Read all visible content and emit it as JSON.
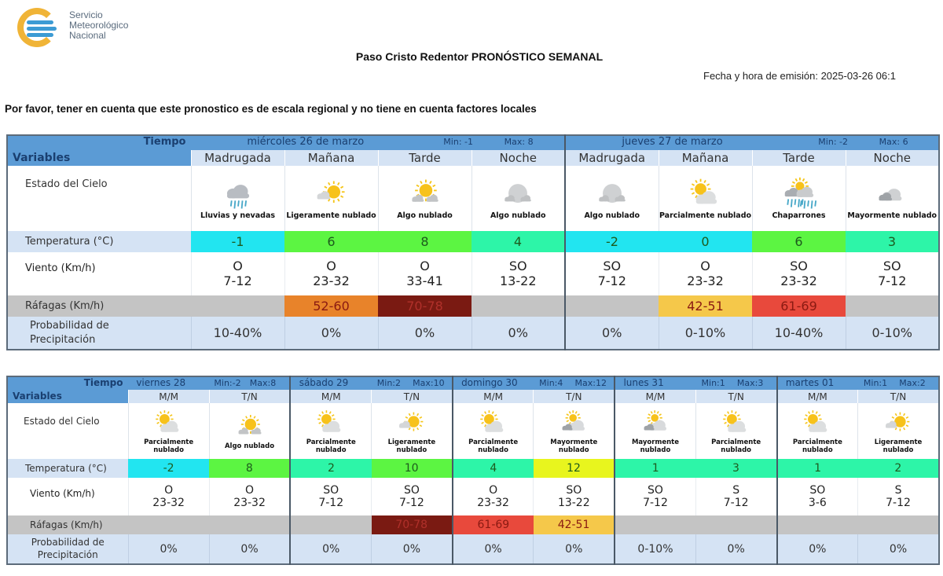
{
  "header": {
    "logo": {
      "line1": "Servicio",
      "line2": "Meteorológico",
      "line3": "Nacional"
    },
    "title": "Paso Cristo Redentor PRONÓSTICO SEMANAL",
    "emission": "Fecha y hora de emisión: 2025-03-26 06:1",
    "notice": "Por favor, tener en cuenta que este pronostico es de escala regional y no tiene en cuenta factores locales"
  },
  "labels": {
    "tiempo": "Tiempo",
    "variables": "Variables",
    "sky": "Estado del Cielo",
    "temp": "Temperatura (°C)",
    "wind": "Viento (Km/h)",
    "gust": "Ráfagas (Km/h)",
    "prob_line1": "Probabilidad de",
    "prob_line2": "Precipitación"
  },
  "colors": {
    "header_blue": "#5b9bd5",
    "subheader": "#d5e3f4",
    "temp_cyan": "#22e5f0",
    "temp_green": "#5cf542",
    "temp_teal": "#2df5a8",
    "temp_yellow": "#e8f51e",
    "gust_none": "#c4c4c4",
    "gust_yellow": "#f5c84a",
    "gust_orange": "#e8832a",
    "gust_red": "#e8493c",
    "gust_darkred": "#7a1a12"
  },
  "table1": {
    "days": [
      {
        "name": "miércoles 26 de marzo",
        "min": "Min:  -1",
        "max": "Max:  8"
      },
      {
        "name": "jueves 27 de marzo",
        "min": "Min:  -2",
        "max": "Max:  6"
      }
    ],
    "periods": [
      {
        "label": "Madrugada",
        "icon": "rain-snow-icon",
        "sky": "Lluvias y nevadas",
        "temp": "-1",
        "temp_color": "#22e5f0",
        "wind_dir": "O",
        "wind_speed": "7-12",
        "gust": "",
        "gust_color": "#c4c4c4",
        "gust_text": "#8a1a12",
        "prob": "10-40%"
      },
      {
        "label": "Mañana",
        "icon": "mostly-sunny-icon",
        "sky": "Ligeramente nublado",
        "temp": "6",
        "temp_color": "#5cf542",
        "wind_dir": "O",
        "wind_speed": "23-32",
        "gust": "52-60",
        "gust_color": "#e8832a",
        "gust_text": "#8a1a12",
        "prob": "0%"
      },
      {
        "label": "Tarde",
        "icon": "sun-behind-cloud-icon",
        "sky": "Algo nublado",
        "temp": "8",
        "temp_color": "#5cf542",
        "wind_dir": "O",
        "wind_speed": "33-41",
        "gust": "70-78",
        "gust_color": "#7a1a12",
        "gust_text": "#b0302a",
        "prob": "0%"
      },
      {
        "label": "Noche",
        "icon": "night-cloudy-icon",
        "sky": "Algo nublado",
        "temp": "4",
        "temp_color": "#2df5a8",
        "wind_dir": "SO",
        "wind_speed": "13-22",
        "gust": "",
        "gust_color": "#c4c4c4",
        "gust_text": "#8a1a12",
        "prob": "0%"
      },
      {
        "label": "Madrugada",
        "icon": "night-cloudy-icon",
        "sky": "Algo nublado",
        "temp": "-2",
        "temp_color": "#22e5f0",
        "wind_dir": "SO",
        "wind_speed": "7-12",
        "gust": "",
        "gust_color": "#c4c4c4",
        "gust_text": "#8a1a12",
        "prob": "0%"
      },
      {
        "label": "Mañana",
        "icon": "partly-cloudy-icon",
        "sky": "Parcialmente nublado",
        "temp": "0",
        "temp_color": "#22e5f0",
        "wind_dir": "O",
        "wind_speed": "23-32",
        "gust": "42-51",
        "gust_color": "#f5c84a",
        "gust_text": "#8a1a12",
        "prob": "0-10%"
      },
      {
        "label": "Tarde",
        "icon": "showers-icon",
        "sky": "Chaparrones",
        "temp": "6",
        "temp_color": "#5cf542",
        "wind_dir": "SO",
        "wind_speed": "23-32",
        "gust": "61-69",
        "gust_color": "#e8493c",
        "gust_text": "#8a1a12",
        "prob": "10-40%"
      },
      {
        "label": "Noche",
        "icon": "mostly-cloudy-night-icon",
        "sky": "Mayormente nublado",
        "temp": "3",
        "temp_color": "#2df5a8",
        "wind_dir": "SO",
        "wind_speed": "7-12",
        "gust": "",
        "gust_color": "#c4c4c4",
        "gust_text": "#8a1a12",
        "prob": "0-10%"
      }
    ]
  },
  "table2": {
    "days": [
      {
        "name": "viernes 28",
        "min": "Min:-2",
        "max": "Max:8"
      },
      {
        "name": "sábado 29",
        "min": "Min:2",
        "max": "Max:10"
      },
      {
        "name": "domingo 30",
        "min": "Min:4",
        "max": "Max:12"
      },
      {
        "name": "lunes 31",
        "min": "Min:1",
        "max": "Max:3"
      },
      {
        "name": "martes 01",
        "min": "Min:1",
        "max": "Max:2"
      }
    ],
    "periods": [
      {
        "label": "M/M",
        "icon": "partly-cloudy-icon",
        "sky": "Parcialmente nublado",
        "temp": "-2",
        "temp_color": "#22e5f0",
        "wind_dir": "O",
        "wind_speed": "23-32",
        "gust": "",
        "gust_color": "#c4c4c4",
        "gust_text": "#8a1a12",
        "prob": "0%"
      },
      {
        "label": "T/N",
        "icon": "sun-behind-cloud-icon",
        "sky": "Algo nublado",
        "temp": "8",
        "temp_color": "#5cf542",
        "wind_dir": "O",
        "wind_speed": "23-32",
        "gust": "",
        "gust_color": "#c4c4c4",
        "gust_text": "#8a1a12",
        "prob": "0%"
      },
      {
        "label": "M/M",
        "icon": "partly-cloudy-icon",
        "sky": "Parcialmente nublado",
        "temp": "2",
        "temp_color": "#2df5a8",
        "wind_dir": "SO",
        "wind_speed": "7-12",
        "gust": "",
        "gust_color": "#c4c4c4",
        "gust_text": "#8a1a12",
        "prob": "0%"
      },
      {
        "label": "T/N",
        "icon": "mostly-sunny-icon",
        "sky": "Ligeramente nublado",
        "temp": "10",
        "temp_color": "#5cf542",
        "wind_dir": "SO",
        "wind_speed": "7-12",
        "gust": "70-78",
        "gust_color": "#7a1a12",
        "gust_text": "#b0302a",
        "prob": "0%"
      },
      {
        "label": "M/M",
        "icon": "partly-cloudy-icon",
        "sky": "Parcialmente nublado",
        "temp": "4",
        "temp_color": "#2df5a8",
        "wind_dir": "O",
        "wind_speed": "23-32",
        "gust": "61-69",
        "gust_color": "#e8493c",
        "gust_text": "#8a1a12",
        "prob": "0%"
      },
      {
        "label": "T/N",
        "icon": "mostly-cloudy-icon",
        "sky": "Mayormente nublado",
        "temp": "12",
        "temp_color": "#e8f51e",
        "wind_dir": "SO",
        "wind_speed": "13-22",
        "gust": "42-51",
        "gust_color": "#f5c84a",
        "gust_text": "#8a1a12",
        "prob": "0%"
      },
      {
        "label": "M/M",
        "icon": "mostly-cloudy-icon",
        "sky": "Mayormente nublado",
        "temp": "1",
        "temp_color": "#2df5a8",
        "wind_dir": "SO",
        "wind_speed": "7-12",
        "gust": "",
        "gust_color": "#c4c4c4",
        "gust_text": "#8a1a12",
        "prob": "0-10%"
      },
      {
        "label": "T/N",
        "icon": "partly-cloudy-icon",
        "sky": "Parcialmente nublado",
        "temp": "3",
        "temp_color": "#2df5a8",
        "wind_dir": "S",
        "wind_speed": "7-12",
        "gust": "",
        "gust_color": "#c4c4c4",
        "gust_text": "#8a1a12",
        "prob": "0%"
      },
      {
        "label": "M/M",
        "icon": "partly-cloudy-icon",
        "sky": "Parcialmente nublado",
        "temp": "1",
        "temp_color": "#2df5a8",
        "wind_dir": "SO",
        "wind_speed": "3-6",
        "gust": "",
        "gust_color": "#c4c4c4",
        "gust_text": "#8a1a12",
        "prob": "0%"
      },
      {
        "label": "T/N",
        "icon": "mostly-sunny-icon",
        "sky": "Ligeramente nublado",
        "temp": "2",
        "temp_color": "#2df5a8",
        "wind_dir": "S",
        "wind_speed": "7-12",
        "gust": "",
        "gust_color": "#c4c4c4",
        "gust_text": "#8a1a12",
        "prob": "0%"
      }
    ]
  }
}
